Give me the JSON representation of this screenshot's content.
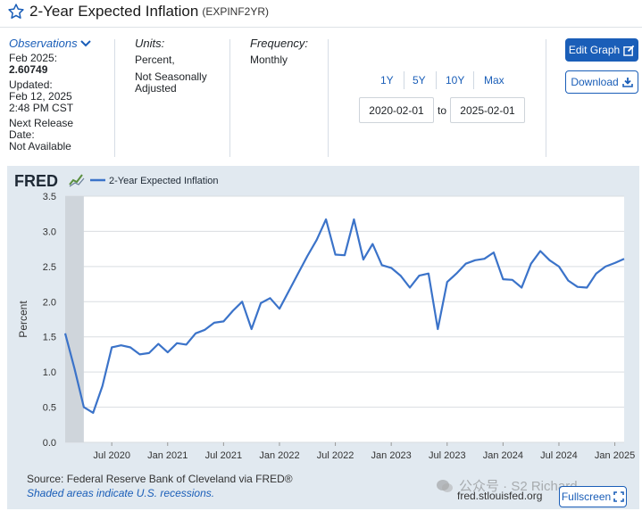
{
  "header": {
    "title": "2-Year Expected Inflation",
    "series_id": "(EXPINF2YR)"
  },
  "observations": {
    "label": "Observations",
    "date": "Feb 2025:",
    "value": "2.60749",
    "updated_label": "Updated:",
    "updated_date": "Feb 12, 2025",
    "updated_time": "2:48 PM CST",
    "next_release_line1": "Next Release",
    "next_release_line2": "Date:",
    "next_release_value": "Not Available"
  },
  "units": {
    "label": "Units:",
    "line1": "Percent,",
    "line2": "Not Seasonally",
    "line3": "Adjusted"
  },
  "frequency": {
    "label": "Frequency:",
    "value": "Monthly"
  },
  "range": {
    "buttons": [
      "1Y",
      "5Y",
      "10Y",
      "Max"
    ],
    "start": "2020-02-01",
    "to_label": "to",
    "end": "2025-02-01"
  },
  "actions": {
    "edit_graph": "Edit Graph",
    "download": "Download"
  },
  "footer": {
    "source": "Source: Federal Reserve Bank of Cleveland via FRED®",
    "shaded": "Shaded areas indicate U.S. recessions.",
    "url": "fred.stlouisfed.org",
    "fullscreen": "Fullscreen",
    "watermark": "公众号 · S2 Richard"
  },
  "colors": {
    "brand_blue": "#1a5eb8",
    "line": "#3b73c9",
    "recession": "#cfd5db",
    "panel": "#e1e9f0"
  },
  "chart_data": {
    "type": "line",
    "logo": "FRED",
    "legend": [
      "2-Year Expected Inflation"
    ],
    "ylabel": "Percent",
    "ylim": [
      0,
      3.5
    ],
    "y_ticks": [
      "0.0",
      "0.5",
      "1.0",
      "1.5",
      "2.0",
      "2.5",
      "3.0",
      "3.5"
    ],
    "x_ticks": [
      "Jul 2020",
      "Jan 2021",
      "Jul 2021",
      "Jan 2022",
      "Jul 2022",
      "Jan 2023",
      "Jul 2023",
      "Jan 2024",
      "Jul 2024",
      "Jan 2025"
    ],
    "x_tick_months": [
      5,
      11,
      17,
      23,
      29,
      35,
      41,
      47,
      53,
      59
    ],
    "recession": {
      "start_month": 0,
      "end_month": 2
    },
    "series": [
      {
        "name": "2-Year Expected Inflation",
        "x": [
          "2020-02",
          "2020-03",
          "2020-04",
          "2020-05",
          "2020-06",
          "2020-07",
          "2020-08",
          "2020-09",
          "2020-10",
          "2020-11",
          "2020-12",
          "2021-01",
          "2021-02",
          "2021-03",
          "2021-04",
          "2021-05",
          "2021-06",
          "2021-07",
          "2021-08",
          "2021-09",
          "2021-10",
          "2021-11",
          "2021-12",
          "2022-01",
          "2022-02",
          "2022-03",
          "2022-04",
          "2022-05",
          "2022-06",
          "2022-07",
          "2022-08",
          "2022-09",
          "2022-10",
          "2022-11",
          "2022-12",
          "2023-01",
          "2023-02",
          "2023-03",
          "2023-04",
          "2023-05",
          "2023-06",
          "2023-07",
          "2023-08",
          "2023-09",
          "2023-10",
          "2023-11",
          "2023-12",
          "2024-01",
          "2024-02",
          "2024-03",
          "2024-04",
          "2024-05",
          "2024-06",
          "2024-07",
          "2024-08",
          "2024-09",
          "2024-10",
          "2024-11",
          "2024-12",
          "2025-01",
          "2025-02"
        ],
        "values": [
          1.55,
          1.05,
          0.5,
          0.42,
          0.8,
          1.35,
          1.38,
          1.35,
          1.25,
          1.27,
          1.4,
          1.28,
          1.41,
          1.39,
          1.55,
          1.6,
          1.7,
          1.72,
          1.87,
          2.0,
          1.61,
          1.98,
          2.05,
          1.9,
          2.15,
          2.4,
          2.65,
          2.88,
          3.17,
          2.67,
          2.66,
          3.17,
          2.6,
          2.82,
          2.52,
          2.48,
          2.37,
          2.2,
          2.37,
          2.4,
          1.61,
          2.28,
          2.4,
          2.54,
          2.59,
          2.61,
          2.7,
          2.32,
          2.31,
          2.2,
          2.54,
          2.72,
          2.59,
          2.5,
          2.3,
          2.21,
          2.2,
          2.4,
          2.5,
          2.55,
          2.61
        ]
      }
    ]
  }
}
